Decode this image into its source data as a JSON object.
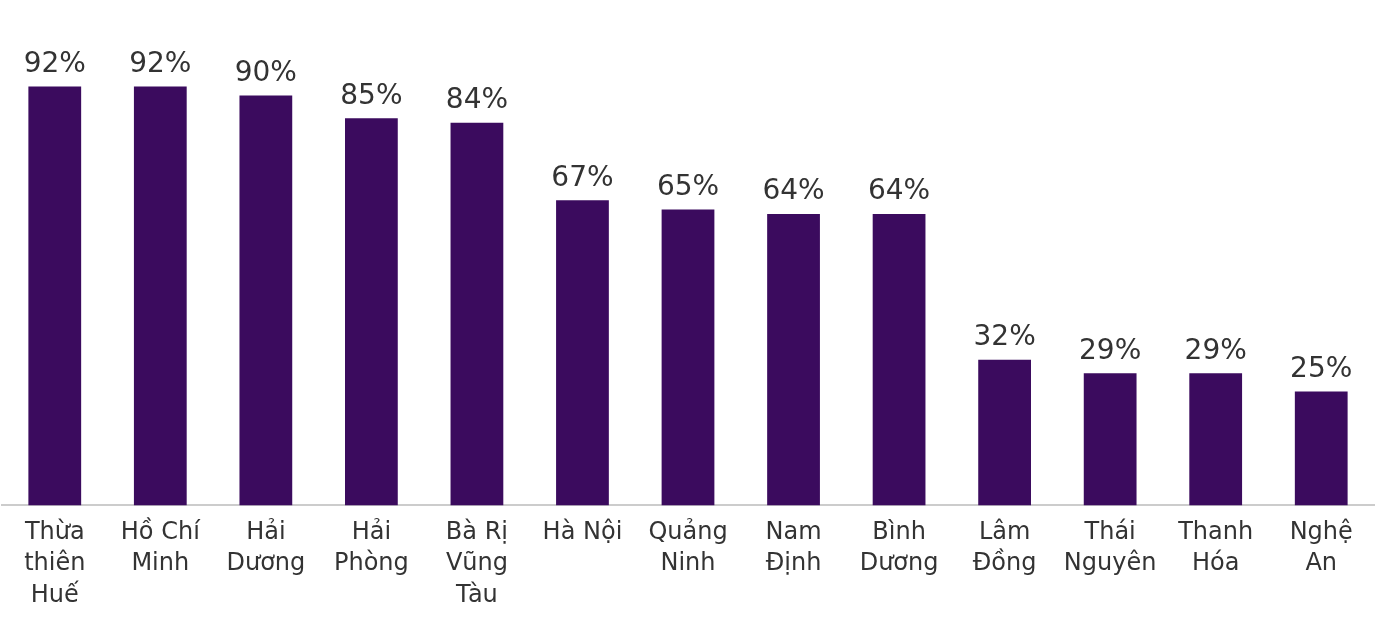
{
  "chart_data": {
    "type": "bar",
    "categories": [
      "Thừa thiên Huế",
      "Hồ Chí Minh",
      "Hải Dương",
      "Hải Phòng",
      "Bà Rị Vũng Tàu",
      "Hà Nội",
      "Quảng Ninh",
      "Nam Định",
      "Bình Dương",
      "Lâm Đồng",
      "Thái Nguyên",
      "Thanh Hóa",
      "Nghệ An"
    ],
    "values": [
      92,
      92,
      90,
      85,
      84,
      67,
      65,
      64,
      64,
      32,
      29,
      29,
      25
    ],
    "value_labels": [
      "92%",
      "92%",
      "90%",
      "85%",
      "84%",
      "67%",
      "65%",
      "64%",
      "64%",
      "32%",
      "29%",
      "29%",
      "25%"
    ],
    "color": "#3b0b5e",
    "tick_labels": "x",
    "grid": false,
    "legend": false
  }
}
